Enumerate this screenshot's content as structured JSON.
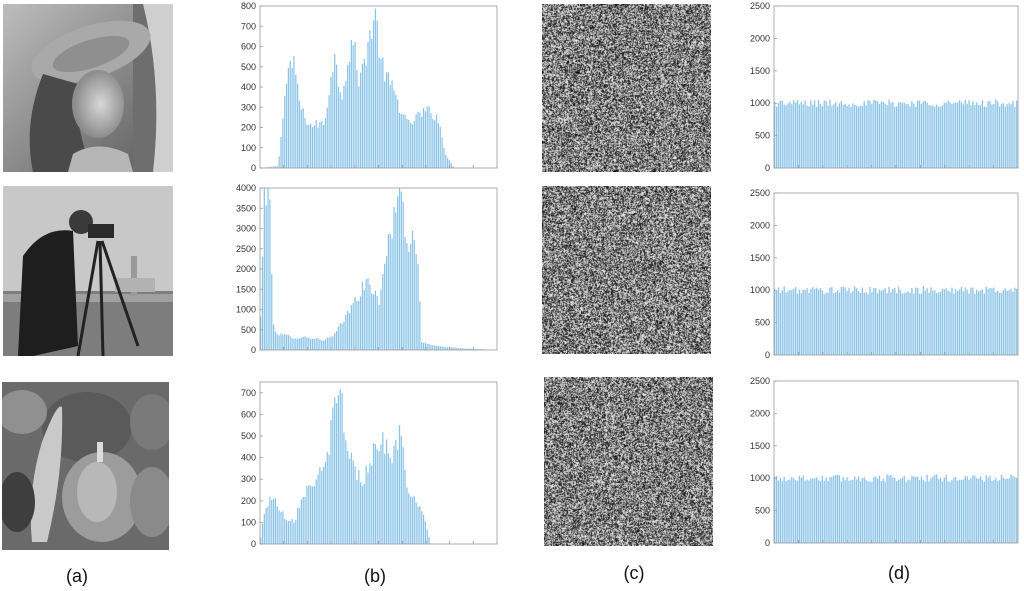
{
  "captions": [
    "(a)",
    "(b)",
    "(c)",
    "(d)"
  ],
  "colors": {
    "bar": "#8cc4e8",
    "axis": "#9a9a9a",
    "photo_bg": "#8a8a8a"
  },
  "rows": [
    {
      "image_subject": "woman with hat",
      "icon": "portrait-photo-icon"
    },
    {
      "image_subject": "cameraman",
      "icon": "cameraman-photo-icon"
    },
    {
      "image_subject": "peppers",
      "icon": "peppers-photo-icon"
    }
  ],
  "chart_data": [
    {
      "type": "bar",
      "panel": "b",
      "row": 1,
      "ylim": [
        0,
        800
      ],
      "yticks": [
        0,
        100,
        200,
        300,
        400,
        500,
        600,
        700,
        800
      ],
      "xrange": [
        0,
        255
      ],
      "grid": false,
      "profile_peaks": [
        [
          0,
          0
        ],
        [
          20,
          10
        ],
        [
          30,
          480
        ],
        [
          38,
          500
        ],
        [
          45,
          280
        ],
        [
          55,
          210
        ],
        [
          70,
          220
        ],
        [
          80,
          560
        ],
        [
          88,
          360
        ],
        [
          100,
          640
        ],
        [
          108,
          420
        ],
        [
          120,
          680
        ],
        [
          125,
          750
        ],
        [
          132,
          500
        ],
        [
          150,
          320
        ],
        [
          160,
          210
        ],
        [
          172,
          260
        ],
        [
          180,
          280
        ],
        [
          192,
          260
        ],
        [
          200,
          80
        ],
        [
          210,
          0
        ],
        [
          255,
          0
        ]
      ]
    },
    {
      "type": "bar",
      "panel": "b",
      "row": 2,
      "ylim": [
        0,
        4000
      ],
      "yticks": [
        0,
        500,
        1000,
        1500,
        2000,
        2500,
        3000,
        3500,
        4000
      ],
      "xrange": [
        0,
        255
      ],
      "grid": false,
      "profile_peaks": [
        [
          0,
          0
        ],
        [
          5,
          4000
        ],
        [
          10,
          4000
        ],
        [
          15,
          600
        ],
        [
          20,
          380
        ],
        [
          30,
          350
        ],
        [
          40,
          300
        ],
        [
          50,
          320
        ],
        [
          60,
          280
        ],
        [
          70,
          250
        ],
        [
          80,
          350
        ],
        [
          90,
          700
        ],
        [
          100,
          1100
        ],
        [
          110,
          1500
        ],
        [
          118,
          1650
        ],
        [
          125,
          1400
        ],
        [
          130,
          1200
        ],
        [
          138,
          2600
        ],
        [
          142,
          3000
        ],
        [
          150,
          4000
        ],
        [
          155,
          4000
        ],
        [
          158,
          2600
        ],
        [
          165,
          2700
        ],
        [
          170,
          2500
        ],
        [
          175,
          200
        ],
        [
          190,
          100
        ],
        [
          220,
          40
        ],
        [
          255,
          0
        ]
      ]
    },
    {
      "type": "bar",
      "panel": "b",
      "row": 3,
      "ylim": [
        0,
        750
      ],
      "yticks": [
        0,
        100,
        200,
        300,
        400,
        500,
        600,
        700
      ],
      "xrange": [
        0,
        255
      ],
      "grid": false,
      "profile_peaks": [
        [
          0,
          0
        ],
        [
          5,
          150
        ],
        [
          12,
          220
        ],
        [
          20,
          180
        ],
        [
          28,
          120
        ],
        [
          38,
          110
        ],
        [
          45,
          220
        ],
        [
          60,
          300
        ],
        [
          70,
          340
        ],
        [
          80,
          600
        ],
        [
          88,
          720
        ],
        [
          92,
          500
        ],
        [
          100,
          380
        ],
        [
          110,
          280
        ],
        [
          122,
          420
        ],
        [
          132,
          500
        ],
        [
          140,
          400
        ],
        [
          148,
          450
        ],
        [
          152,
          520
        ],
        [
          160,
          250
        ],
        [
          170,
          180
        ],
        [
          178,
          120
        ],
        [
          185,
          0
        ],
        [
          255,
          0
        ]
      ]
    },
    {
      "type": "bar",
      "panel": "d",
      "row": 1,
      "ylim": [
        0,
        2500
      ],
      "yticks": [
        0,
        500,
        1000,
        1500,
        2000,
        2500
      ],
      "xrange": [
        0,
        255
      ],
      "grid": false,
      "mean": 1000,
      "spread": 60
    },
    {
      "type": "bar",
      "panel": "d",
      "row": 2,
      "ylim": [
        0,
        2500
      ],
      "yticks": [
        0,
        500,
        1000,
        1500,
        2000,
        2500
      ],
      "xrange": [
        0,
        255
      ],
      "grid": false,
      "mean": 1000,
      "spread": 60
    },
    {
      "type": "bar",
      "panel": "d",
      "row": 3,
      "ylim": [
        0,
        2500
      ],
      "yticks": [
        0,
        500,
        1000,
        1500,
        2000,
        2500
      ],
      "xrange": [
        0,
        255
      ],
      "grid": false,
      "mean": 1000,
      "spread": 60
    }
  ]
}
